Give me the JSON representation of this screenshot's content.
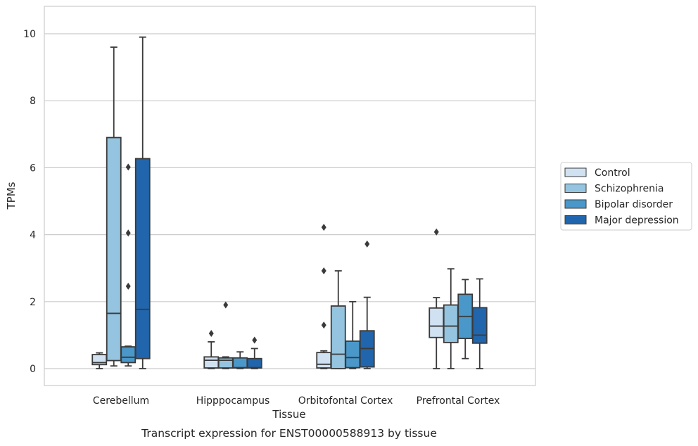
{
  "chart_data": {
    "type": "box",
    "caption": "Transcript expression for ENST00000588913 by tissue",
    "xlabel": "Tissue",
    "ylabel": "TPMs",
    "ylim": [
      -0.5,
      10.8
    ],
    "yticks": [
      0,
      2,
      4,
      6,
      8,
      10
    ],
    "grid": true,
    "legend_position": "right",
    "categories": [
      "Cerebellum",
      "Hipppocampus",
      "Orbitofontal Cortex",
      "Prefrontal Cortex"
    ],
    "series": [
      {
        "name": "Control",
        "color": "#d0e1f2",
        "boxes": [
          {
            "q1": 0.12,
            "median": 0.18,
            "q3": 0.42,
            "whislo": 0.0,
            "whishi": 0.47,
            "fliers": []
          },
          {
            "q1": 0.02,
            "median": 0.25,
            "q3": 0.35,
            "whislo": 0.0,
            "whishi": 0.8,
            "fliers": [
              1.05
            ]
          },
          {
            "q1": 0.02,
            "median": 0.13,
            "q3": 0.48,
            "whislo": 0.0,
            "whishi": 0.53,
            "fliers": [
              1.3,
              2.92,
              4.22
            ]
          },
          {
            "q1": 0.93,
            "median": 1.27,
            "q3": 1.81,
            "whislo": 0.0,
            "whishi": 2.12,
            "fliers": [
              4.08
            ]
          }
        ]
      },
      {
        "name": "Schizophrenia",
        "color": "#94c4df",
        "boxes": [
          {
            "q1": 0.24,
            "median": 1.65,
            "q3": 6.9,
            "whislo": 0.08,
            "whishi": 9.6,
            "fliers": []
          },
          {
            "q1": 0.02,
            "median": 0.25,
            "q3": 0.32,
            "whislo": 0.0,
            "whishi": 0.35,
            "fliers": [
              1.9
            ]
          },
          {
            "q1": 0.0,
            "median": 0.43,
            "q3": 1.87,
            "whislo": 0.0,
            "whishi": 2.92,
            "fliers": []
          },
          {
            "q1": 0.78,
            "median": 1.27,
            "q3": 1.9,
            "whislo": 0.0,
            "whishi": 2.98,
            "fliers": []
          }
        ]
      },
      {
        "name": "Bipolar disorder",
        "color": "#4a98c9",
        "boxes": [
          {
            "q1": 0.18,
            "median": 0.34,
            "q3": 0.65,
            "whislo": 0.08,
            "whishi": 0.67,
            "fliers": [
              2.46,
              4.05,
              6.02
            ]
          },
          {
            "q1": 0.02,
            "median": 0.03,
            "q3": 0.32,
            "whislo": 0.0,
            "whishi": 0.5,
            "fliers": []
          },
          {
            "q1": 0.03,
            "median": 0.33,
            "q3": 0.82,
            "whislo": 0.0,
            "whishi": 2.0,
            "fliers": []
          },
          {
            "q1": 0.9,
            "median": 1.56,
            "q3": 2.22,
            "whislo": 0.3,
            "whishi": 2.66,
            "fliers": []
          }
        ]
      },
      {
        "name": "Major depression",
        "color": "#2166ac",
        "boxes": [
          {
            "q1": 0.3,
            "median": 1.77,
            "q3": 6.27,
            "whislo": 0.0,
            "whishi": 9.9,
            "fliers": []
          },
          {
            "q1": 0.02,
            "median": 0.03,
            "q3": 0.3,
            "whislo": 0.0,
            "whishi": 0.6,
            "fliers": [
              0.85
            ]
          },
          {
            "q1": 0.05,
            "median": 0.6,
            "q3": 1.13,
            "whislo": 0.0,
            "whishi": 2.13,
            "fliers": [
              3.72
            ]
          },
          {
            "q1": 0.76,
            "median": 1.0,
            "q3": 1.82,
            "whislo": 0.0,
            "whishi": 2.68,
            "fliers": []
          }
        ]
      }
    ]
  }
}
